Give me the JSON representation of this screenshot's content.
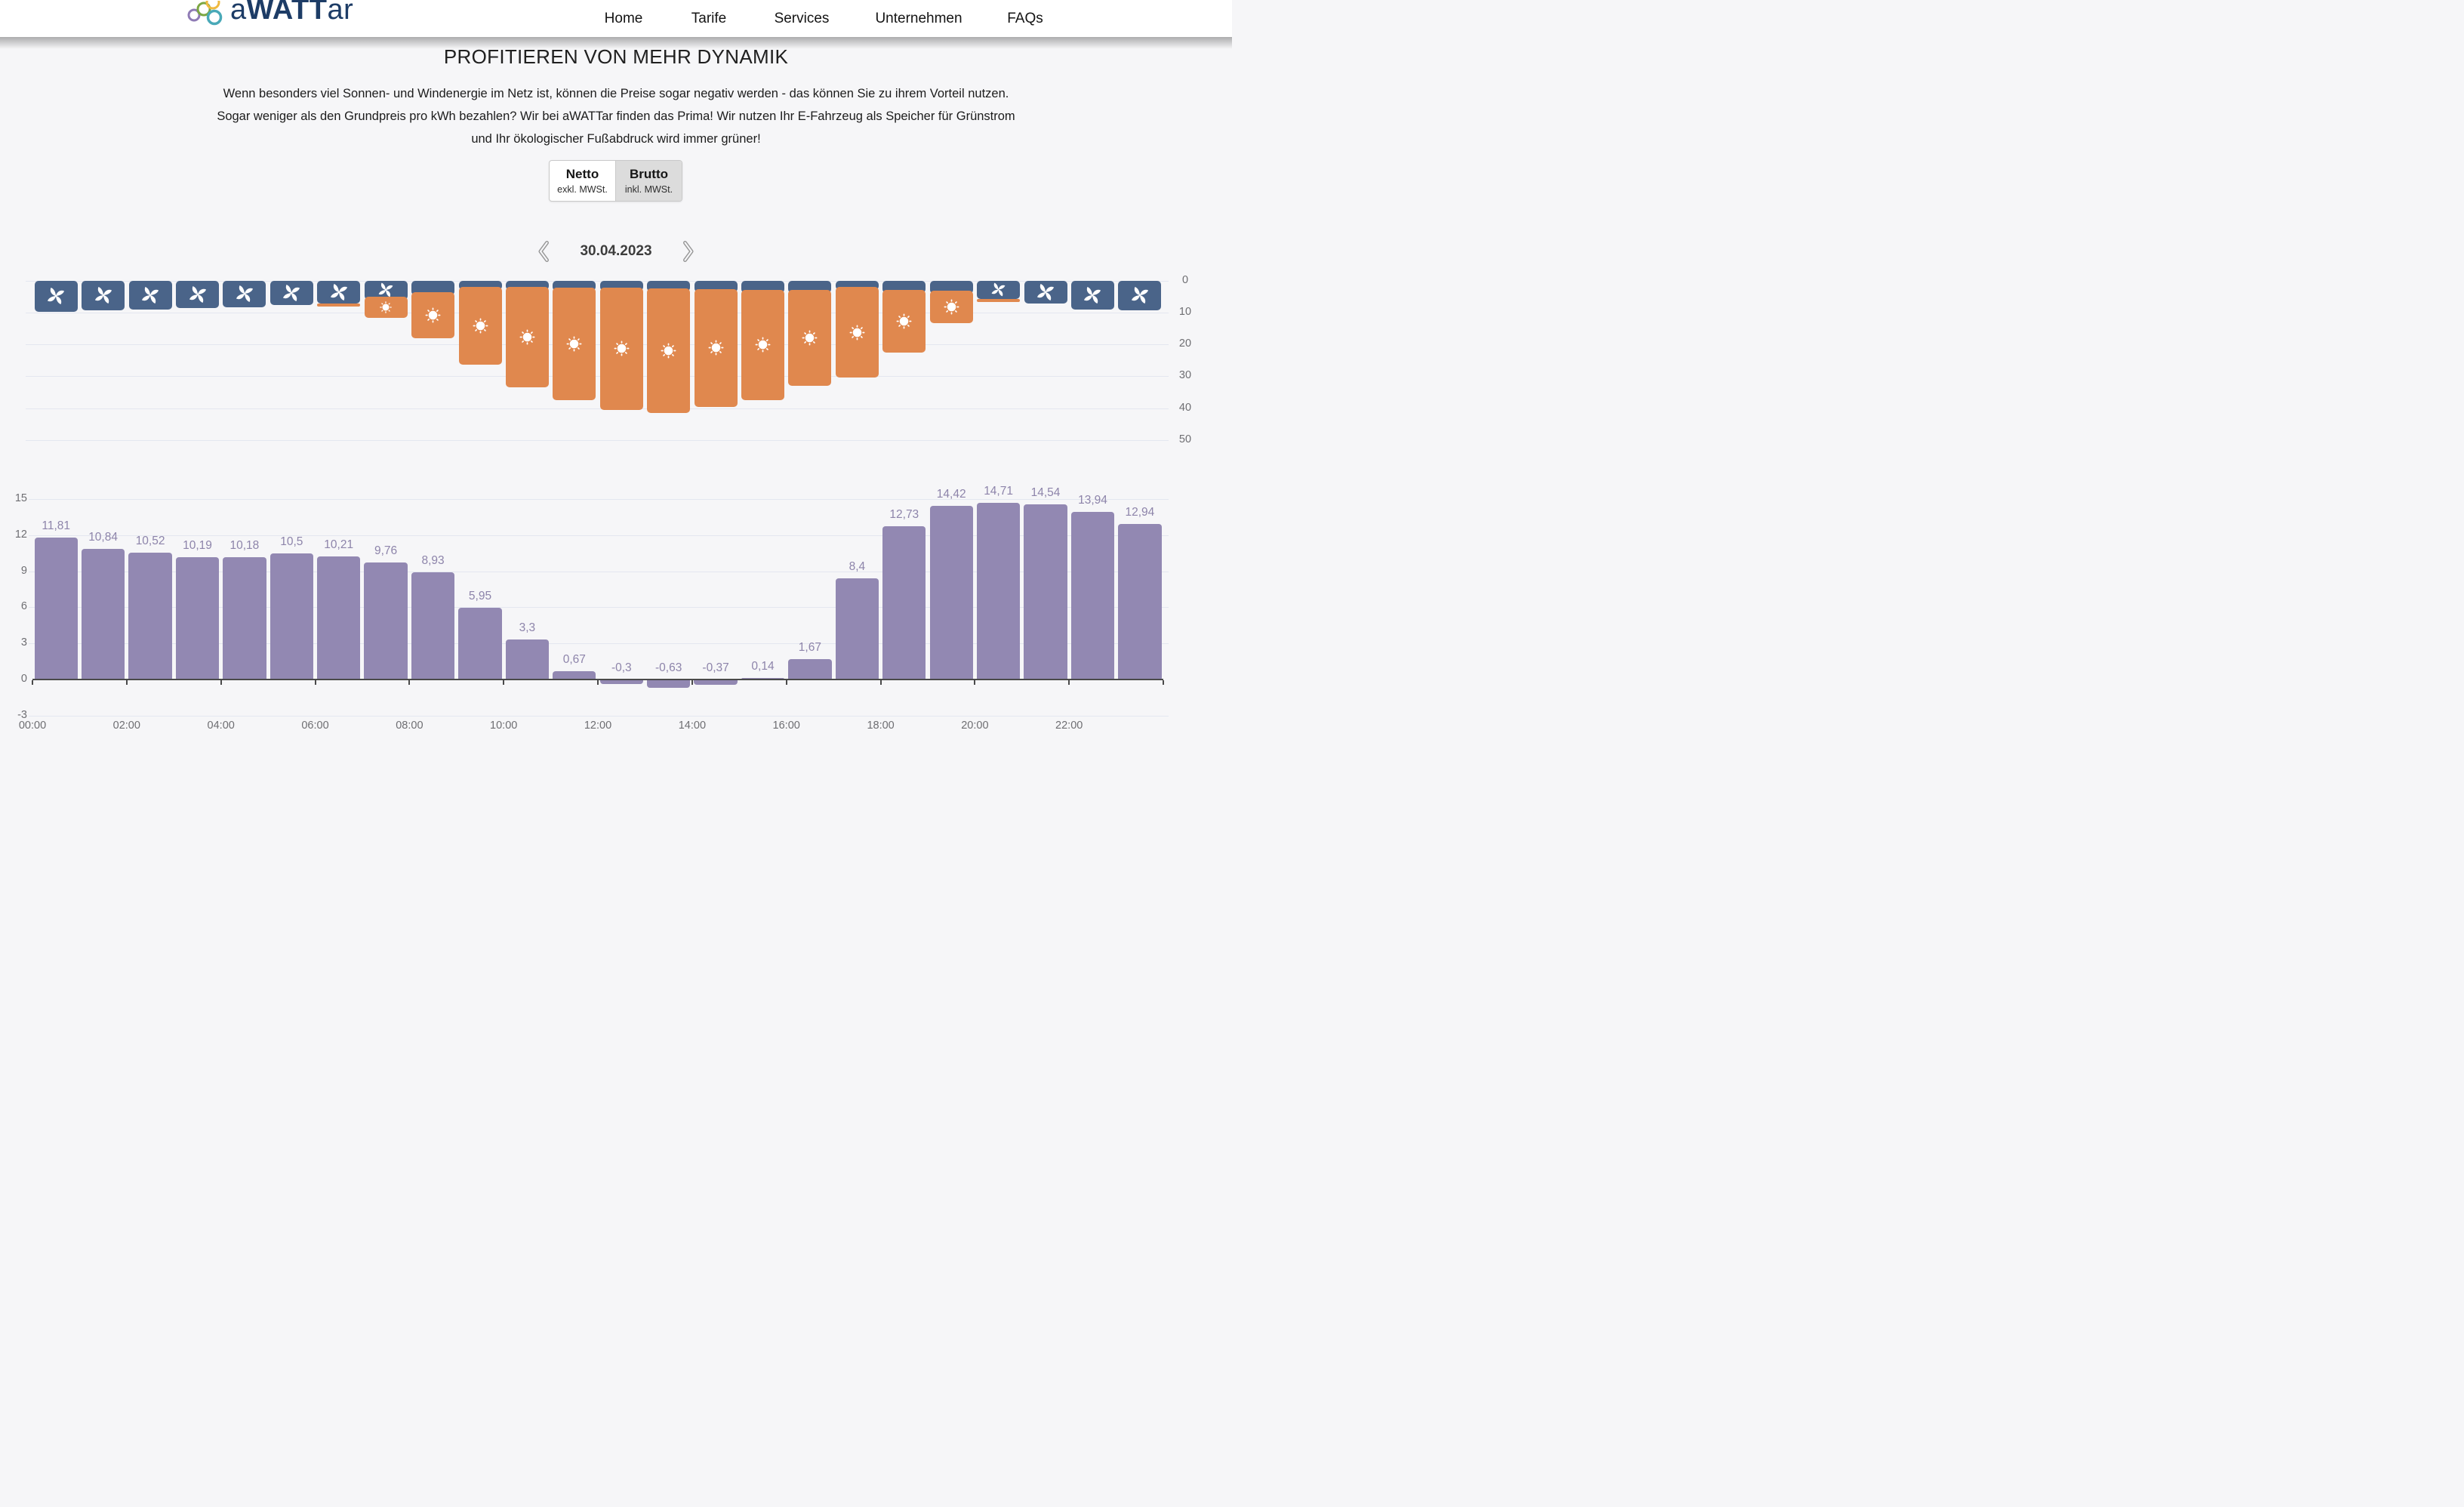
{
  "header": {
    "logo": {
      "prefix": "a",
      "emphasis": "WATT",
      "suffix": "ar",
      "text_color": "#1d3c66",
      "ring_colors": [
        "#8f7bb5",
        "#7ca742",
        "#efb93f",
        "#49a9b8"
      ]
    },
    "nav_items": [
      {
        "label": "Home"
      },
      {
        "label": "Tarife"
      },
      {
        "label": "Services"
      },
      {
        "label": "Unternehmen"
      },
      {
        "label": "FAQs"
      }
    ]
  },
  "hero": {
    "title": "PROFITIEREN VON MEHR DYNAMIK",
    "lines": [
      "Wenn besonders viel Sonnen- und Windenergie im Netz ist, können die Preise sogar negativ werden - das können Sie zu ihrem Vorteil nutzen.",
      "Sogar weniger als den Grundpreis pro kWh bezahlen? Wir bei aWATTar finden das Prima! Wir nutzen Ihr E-Fahrzeug als Speicher für Grünstrom",
      "und Ihr ökologischer Fußabdruck wird immer grüner!"
    ]
  },
  "vat_toggle": {
    "options": [
      {
        "label": "Netto",
        "sublabel": "exkl. MWSt.",
        "active": true
      },
      {
        "label": "Brutto",
        "sublabel": "inkl. MWSt.",
        "active": false
      }
    ]
  },
  "date_nav": {
    "date": "30.04.2023",
    "prev_icon": "chevron-left-icon",
    "next_icon": "chevron-right-icon"
  },
  "chart_data": [
    {
      "type": "bar",
      "name": "renewable-generation-by-hour",
      "layout": "stacked, hanging from top (inverted axis)",
      "categories": [
        "00:00",
        "01:00",
        "02:00",
        "03:00",
        "04:00",
        "05:00",
        "06:00",
        "07:00",
        "08:00",
        "09:00",
        "10:00",
        "11:00",
        "12:00",
        "13:00",
        "14:00",
        "15:00",
        "16:00",
        "17:00",
        "18:00",
        "19:00",
        "20:00",
        "21:00",
        "22:00",
        "23:00"
      ],
      "series": [
        {
          "name": "Wind",
          "icon": "wind-turbine-icon",
          "color": "#4a6489",
          "values": [
            9.9,
            9.4,
            9.2,
            8.7,
            8.3,
            7.7,
            7.1,
            6.1,
            4.6,
            3.0,
            3.0,
            3.2,
            3.3,
            3.5,
            3.6,
            3.8,
            4.0,
            3.0,
            3.8,
            4.2,
            5.8,
            7.3,
            9.0,
            9.4
          ]
        },
        {
          "name": "Solar",
          "icon": "sun-icon",
          "color": "#e0884e",
          "values": [
            0,
            0,
            0,
            0,
            0,
            0,
            1.0,
            5.7,
            13.5,
            23.3,
            30.4,
            34.3,
            37.2,
            38.0,
            36.0,
            33.7,
            29.0,
            27.5,
            18.7,
            9.3,
            0.5,
            0,
            0,
            0
          ]
        }
      ],
      "y_axis": {
        "position": "right",
        "inverted": true,
        "range": [
          0,
          50
        ],
        "ticks": [
          0,
          10,
          20,
          30,
          40,
          50
        ]
      },
      "grid": true
    },
    {
      "type": "bar",
      "name": "hourly-electricity-price",
      "categories": [
        "00:00",
        "01:00",
        "02:00",
        "03:00",
        "04:00",
        "05:00",
        "06:00",
        "07:00",
        "08:00",
        "09:00",
        "10:00",
        "11:00",
        "12:00",
        "13:00",
        "14:00",
        "15:00",
        "16:00",
        "17:00",
        "18:00",
        "19:00",
        "20:00",
        "21:00",
        "22:00",
        "23:00"
      ],
      "values": [
        11.81,
        10.84,
        10.52,
        10.19,
        10.18,
        10.5,
        10.21,
        9.76,
        8.93,
        5.95,
        3.3,
        0.67,
        -0.3,
        -0.63,
        -0.37,
        0.14,
        1.67,
        8.4,
        12.73,
        14.42,
        14.71,
        14.54,
        13.94,
        12.94
      ],
      "labels": [
        "11,81",
        "10,84",
        "10,52",
        "10,19",
        "10,18",
        "10,5",
        "10,21",
        "9,76",
        "8,93",
        "5,95",
        "3,3",
        "0,67",
        "-0,3",
        "-0,63",
        "-0,37",
        "0,14",
        "1,67",
        "8,4",
        "12,73",
        "14,42",
        "14,71",
        "14,54",
        "13,94",
        "12,94"
      ],
      "bar_color": "#9288b2",
      "label_color": "#8d84aa",
      "y_axis": {
        "position": "left",
        "range": [
          -3,
          15
        ],
        "ticks": [
          15,
          12,
          9,
          6,
          3,
          0,
          -3
        ]
      },
      "x_axis": {
        "tick_labels": [
          "00:00",
          "02:00",
          "04:00",
          "06:00",
          "08:00",
          "10:00",
          "12:00",
          "14:00",
          "16:00",
          "18:00",
          "20:00",
          "22:00"
        ]
      }
    }
  ]
}
